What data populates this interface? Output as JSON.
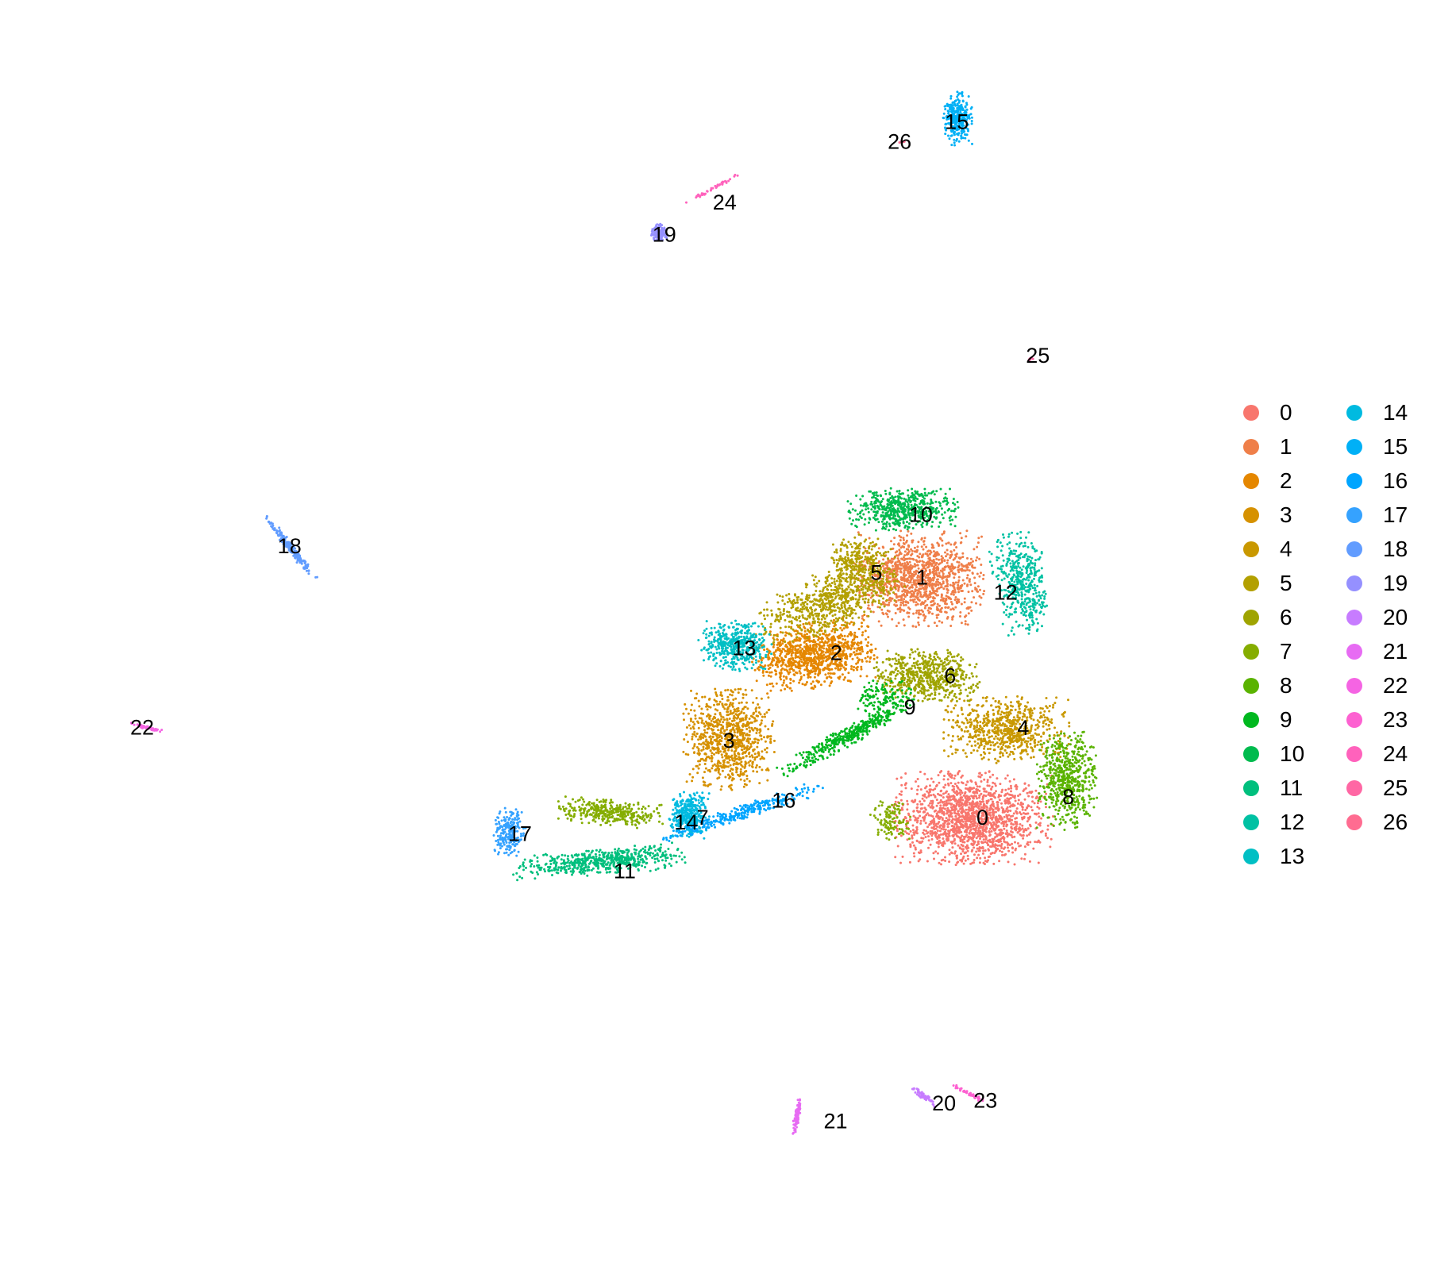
{
  "chart_data": {
    "type": "scatter",
    "title": "",
    "xlabel": "",
    "ylabel": "",
    "grid": false,
    "axes_visible": false,
    "legend_position": "right",
    "legend_columns": 2,
    "clusters": [
      {
        "id": "0",
        "color": "#F8766D",
        "regions": [
          {
            "cx": 0.505,
            "cy": -0.26,
            "rx": 0.12,
            "ry": 0.078,
            "angle": 0,
            "n": 1600
          }
        ]
      },
      {
        "id": "1",
        "color": "#EF7F49",
        "regions": [
          {
            "cx": 0.418,
            "cy": 0.178,
            "rx": 0.098,
            "ry": 0.08,
            "angle": 0,
            "n": 1200
          }
        ]
      },
      {
        "id": "2",
        "color": "#E58700",
        "regions": [
          {
            "cx": 0.245,
            "cy": 0.038,
            "rx": 0.095,
            "ry": 0.055,
            "angle": 10,
            "n": 1000
          }
        ]
      },
      {
        "id": "3",
        "color": "#D69100",
        "regions": [
          {
            "cx": 0.105,
            "cy": -0.115,
            "rx": 0.068,
            "ry": 0.085,
            "angle": 0,
            "n": 850
          }
        ]
      },
      {
        "id": "4",
        "color": "#C99800",
        "regions": [
          {
            "cx": 0.56,
            "cy": -0.097,
            "rx": 0.095,
            "ry": 0.058,
            "angle": 0,
            "n": 700
          }
        ]
      },
      {
        "id": "5",
        "color": "#B3A000",
        "regions": [
          {
            "cx": 0.278,
            "cy": 0.14,
            "rx": 0.12,
            "ry": 0.05,
            "angle": 25,
            "n": 700
          },
          {
            "cx": 0.32,
            "cy": 0.21,
            "rx": 0.05,
            "ry": 0.045,
            "angle": 0,
            "n": 250
          }
        ]
      },
      {
        "id": "6",
        "color": "#9FA400",
        "regions": [
          {
            "cx": 0.43,
            "cy": 0.0,
            "rx": 0.08,
            "ry": 0.045,
            "angle": 0,
            "n": 600
          }
        ]
      },
      {
        "id": "7",
        "color": "#85AD00",
        "regions": [
          {
            "cx": -0.09,
            "cy": -0.25,
            "rx": 0.08,
            "ry": 0.022,
            "angle": -5,
            "n": 350
          },
          {
            "cx": 0.37,
            "cy": -0.265,
            "rx": 0.03,
            "ry": 0.035,
            "angle": 0,
            "n": 120
          }
        ]
      },
      {
        "id": "8",
        "color": "#5AB300",
        "regions": [
          {
            "cx": 0.66,
            "cy": -0.19,
            "rx": 0.045,
            "ry": 0.085,
            "angle": 0,
            "n": 600
          }
        ]
      },
      {
        "id": "9",
        "color": "#00B81F",
        "regions": [
          {
            "cx": 0.3,
            "cy": -0.11,
            "rx": 0.12,
            "ry": 0.016,
            "angle": 32,
            "n": 400
          },
          {
            "cx": 0.36,
            "cy": -0.04,
            "rx": 0.045,
            "ry": 0.03,
            "angle": 0,
            "n": 120
          }
        ]
      },
      {
        "id": "10",
        "color": "#00BB4E",
        "regions": [
          {
            "cx": 0.393,
            "cy": 0.305,
            "rx": 0.085,
            "ry": 0.035,
            "angle": 0,
            "n": 550
          }
        ]
      },
      {
        "id": "11",
        "color": "#00BF7D",
        "regions": [
          {
            "cx": -0.108,
            "cy": -0.34,
            "rx": 0.13,
            "ry": 0.022,
            "angle": 5,
            "n": 550
          }
        ]
      },
      {
        "id": "12",
        "color": "#00C1A3",
        "regions": [
          {
            "cx": 0.585,
            "cy": 0.17,
            "rx": 0.04,
            "ry": 0.085,
            "angle": 10,
            "n": 450
          }
        ]
      },
      {
        "id": "13",
        "color": "#00BFC4",
        "regions": [
          {
            "cx": 0.115,
            "cy": 0.055,
            "rx": 0.055,
            "ry": 0.042,
            "angle": 0,
            "n": 450
          }
        ]
      },
      {
        "id": "14",
        "color": "#00BAE0",
        "regions": [
          {
            "cx": 0.04,
            "cy": -0.255,
            "rx": 0.03,
            "ry": 0.04,
            "angle": 0,
            "n": 350
          }
        ]
      },
      {
        "id": "15",
        "color": "#00B0F6",
        "regions": [
          {
            "cx": 0.48,
            "cy": 1.02,
            "rx": 0.022,
            "ry": 0.045,
            "angle": 0,
            "n": 300
          }
        ]
      },
      {
        "id": "16",
        "color": "#00A5FF",
        "regions": [
          {
            "cx": 0.125,
            "cy": -0.25,
            "rx": 0.13,
            "ry": 0.012,
            "angle": 20,
            "n": 300
          }
        ]
      },
      {
        "id": "17",
        "color": "#35A2FF",
        "regions": [
          {
            "cx": -0.255,
            "cy": -0.285,
            "rx": 0.025,
            "ry": 0.04,
            "angle": -10,
            "n": 220
          }
        ]
      },
      {
        "id": "18",
        "color": "#619CFF",
        "regions": [
          {
            "cx": -0.615,
            "cy": 0.235,
            "rx": 0.065,
            "ry": 0.006,
            "angle": -55,
            "n": 200
          }
        ]
      },
      {
        "id": "19",
        "color": "#9590FF",
        "regions": [
          {
            "cx": -0.01,
            "cy": 0.812,
            "rx": 0.012,
            "ry": 0.014,
            "angle": 0,
            "n": 120
          }
        ]
      },
      {
        "id": "20",
        "color": "#C77CFF",
        "regions": [
          {
            "cx": 0.425,
            "cy": -0.77,
            "rx": 0.028,
            "ry": 0.005,
            "angle": -40,
            "n": 70
          }
        ]
      },
      {
        "id": "21",
        "color": "#E76BF3",
        "regions": [
          {
            "cx": 0.216,
            "cy": -0.808,
            "rx": 0.032,
            "ry": 0.004,
            "angle": 80,
            "n": 90
          }
        ]
      },
      {
        "id": "22",
        "color": "#F564E3",
        "regions": [
          {
            "cx": -0.85,
            "cy": -0.095,
            "rx": 0.03,
            "ry": 0.003,
            "angle": -15,
            "n": 60
          }
        ]
      },
      {
        "id": "23",
        "color": "#FD61D1",
        "regions": [
          {
            "cx": 0.5,
            "cy": -0.765,
            "rx": 0.028,
            "ry": 0.003,
            "angle": -30,
            "n": 50
          }
        ]
      },
      {
        "id": "24",
        "color": "#FF62BC",
        "regions": [
          {
            "cx": 0.075,
            "cy": 0.89,
            "rx": 0.05,
            "ry": 0.003,
            "angle": 32,
            "n": 45
          }
        ]
      },
      {
        "id": "25",
        "color": "#FF67A4",
        "regions": [
          {
            "cx": 0.6,
            "cy": 0.58,
            "rx": 0.005,
            "ry": 0.003,
            "angle": 0,
            "n": 6
          }
        ]
      },
      {
        "id": "26",
        "color": "#FF6C91",
        "regions": [
          {
            "cx": 0.39,
            "cy": 0.978,
            "rx": 0.005,
            "ry": 0.003,
            "angle": 0,
            "n": 5
          }
        ]
      }
    ],
    "labels": [
      {
        "text": "0",
        "x": 0.521,
        "y": -0.259
      },
      {
        "text": "1",
        "x": 0.422,
        "y": 0.18
      },
      {
        "text": "2",
        "x": 0.281,
        "y": 0.042
      },
      {
        "text": "3",
        "x": 0.105,
        "y": -0.118
      },
      {
        "text": "4",
        "x": 0.588,
        "y": -0.095
      },
      {
        "text": "5",
        "x": 0.347,
        "y": 0.189
      },
      {
        "text": "6",
        "x": 0.468,
        "y": 0.0
      },
      {
        "text": "7",
        "x": 0.062,
        "y": -0.259
      },
      {
        "text": "8",
        "x": 0.662,
        "y": -0.221
      },
      {
        "text": "9",
        "x": 0.402,
        "y": -0.057
      },
      {
        "text": "10",
        "x": 0.42,
        "y": 0.295
      },
      {
        "text": "11",
        "x": -0.066,
        "y": -0.357
      },
      {
        "text": "12",
        "x": 0.559,
        "y": 0.153
      },
      {
        "text": "13",
        "x": 0.13,
        "y": 0.051
      },
      {
        "text": "14",
        "x": 0.035,
        "y": -0.268
      },
      {
        "text": "15",
        "x": 0.479,
        "y": 1.014
      },
      {
        "text": "16",
        "x": 0.195,
        "y": -0.228
      },
      {
        "text": "17",
        "x": -0.238,
        "y": -0.289
      },
      {
        "text": "18",
        "x": -0.616,
        "y": 0.238
      },
      {
        "text": "19",
        "x": -0.001,
        "y": 0.808
      },
      {
        "text": "20",
        "x": 0.458,
        "y": -0.782
      },
      {
        "text": "21",
        "x": 0.28,
        "y": -0.815
      },
      {
        "text": "22",
        "x": -0.858,
        "y": -0.094
      },
      {
        "text": "23",
        "x": 0.526,
        "y": -0.777
      },
      {
        "text": "24",
        "x": 0.098,
        "y": 0.867
      },
      {
        "text": "25",
        "x": 0.612,
        "y": 0.586
      },
      {
        "text": "26",
        "x": 0.385,
        "y": 0.978
      }
    ],
    "xlim": [
      -1.0,
      0.85
    ],
    "ylim": [
      -1.0,
      1.15
    ]
  }
}
